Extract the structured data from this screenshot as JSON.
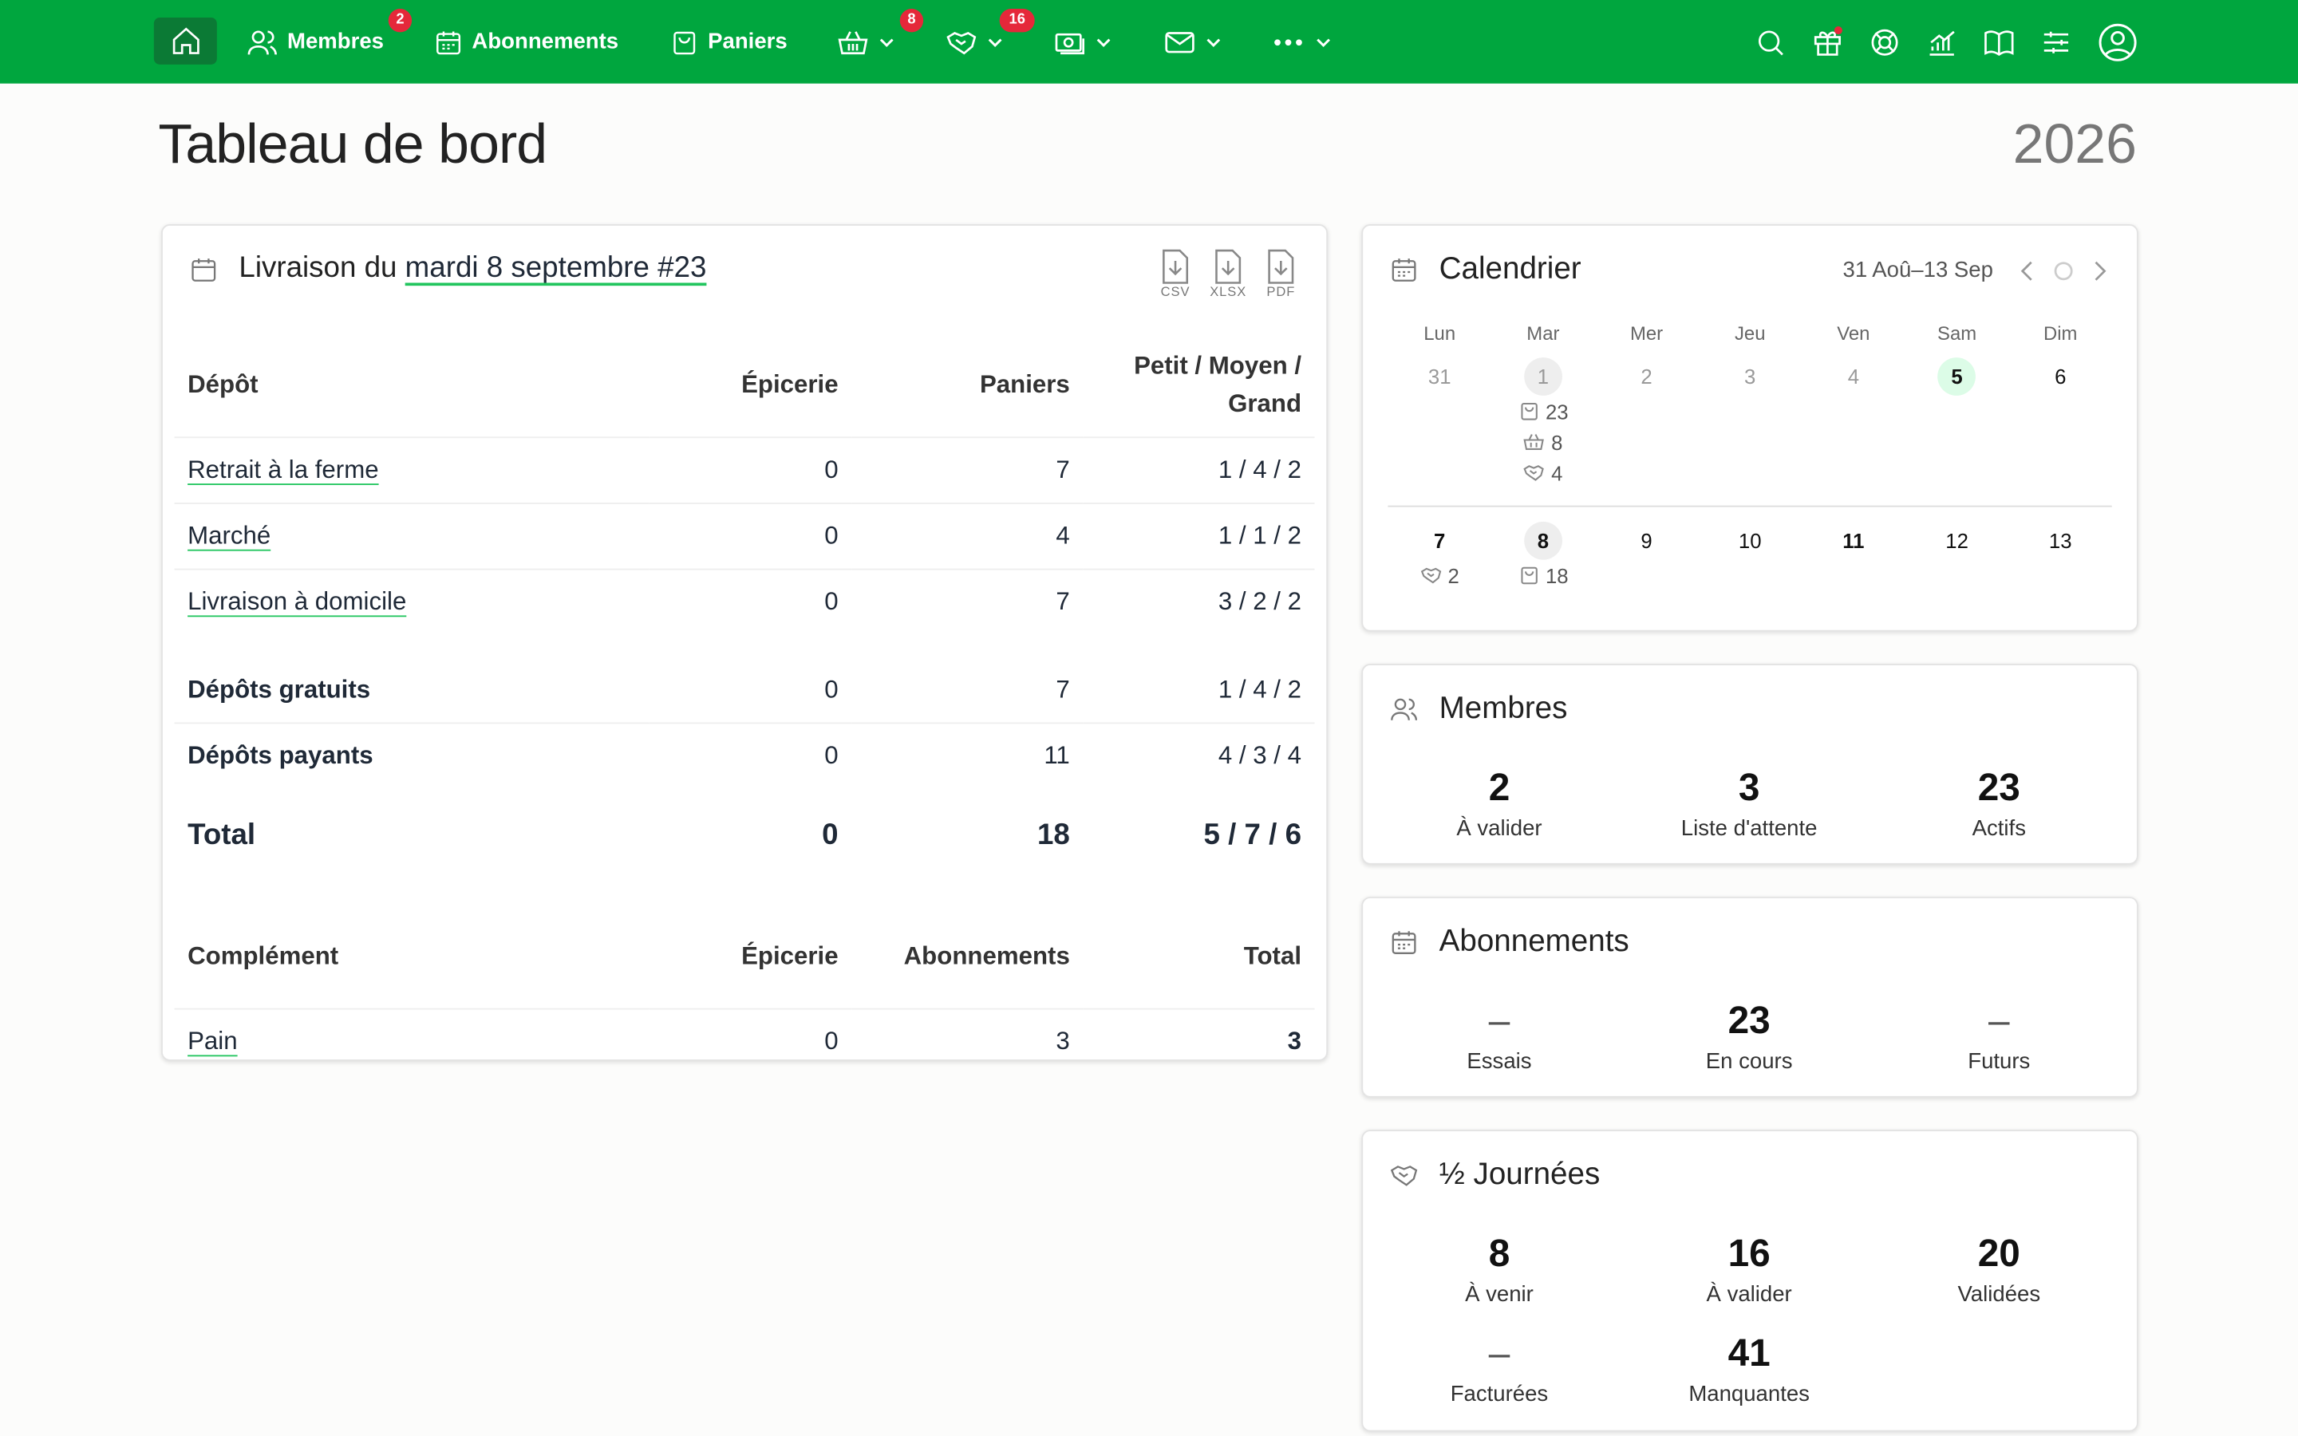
{
  "nav": {
    "membres": {
      "label": "Membres",
      "badge": 2
    },
    "abonnements": "Abonnements",
    "paniers": "Paniers",
    "corbeilles_badge": 8,
    "journees_badge": 16
  },
  "header": {
    "title": "Tableau de bord",
    "year": 2026
  },
  "delivery": {
    "title_prefix": "Livraison du",
    "title_link": "mardi 8 septembre #23",
    "exports": [
      "CSV",
      "XLSX",
      "PDF"
    ],
    "headers": [
      "Dépôt",
      "Épicerie",
      "Paniers",
      "Petit / Moyen / Grand"
    ],
    "rows": [
      [
        "Retrait à la ferme",
        0,
        7,
        "1 / 4 / 2"
      ],
      [
        "Marché",
        0,
        4,
        "1 / 1 / 2"
      ],
      [
        "Livraison à domicile",
        0,
        7,
        "3 / 2 / 2"
      ]
    ],
    "summary": [
      [
        "Dépôts gratuits",
        0,
        7,
        "1 / 4 / 2"
      ],
      [
        "Dépôts payants",
        0,
        11,
        "4 / 3 / 4"
      ]
    ],
    "total": [
      "Total",
      0,
      18,
      "5 / 7 / 6"
    ],
    "complement_headers": [
      "Complément",
      "Épicerie",
      "Abonnements",
      "Total"
    ],
    "complement_rows": [
      [
        "Pain",
        0,
        3,
        3
      ]
    ]
  },
  "calendar": {
    "title": "Calendrier",
    "range": "31 Aoû–13 Sep",
    "weekdays": [
      "Lun",
      "Mar",
      "Mer",
      "Jeu",
      "Ven",
      "Sam",
      "Dim"
    ],
    "weeks": [
      [
        {
          "day": 31
        },
        {
          "day": 1,
          "paniers": 23,
          "corbeilles": 8,
          "journees": 4
        },
        {
          "day": 2
        },
        {
          "day": 3
        },
        {
          "day": 4
        },
        {
          "day": 5
        },
        {
          "day": 6
        }
      ],
      [
        {
          "day": 7,
          "journees": 2
        },
        {
          "day": 8,
          "paniers": 18
        },
        {
          "day": 9
        },
        {
          "day": 10
        },
        {
          "day": 11
        },
        {
          "day": 12
        },
        {
          "day": 13
        }
      ]
    ]
  },
  "cards": [
    {
      "title": "Membres",
      "stats": [
        {
          "value": 2,
          "label": "À valider"
        },
        {
          "value": 3,
          "label": "Liste d'attente"
        },
        {
          "value": 23,
          "label": "Actifs"
        }
      ]
    },
    {
      "title": "Abonnements",
      "stats": [
        {
          "value": "–",
          "label": "Essais"
        },
        {
          "value": 23,
          "label": "En cours"
        },
        {
          "value": "–",
          "label": "Futurs"
        }
      ]
    },
    {
      "title": "½ Journées",
      "stats": [
        {
          "value": 8,
          "label": "À venir"
        },
        {
          "value": 16,
          "label": "À valider"
        },
        {
          "value": 20,
          "label": "Validées"
        },
        {
          "value": "–",
          "label": "Facturées"
        },
        {
          "value": 41,
          "label": "Manquantes"
        }
      ]
    }
  ]
}
